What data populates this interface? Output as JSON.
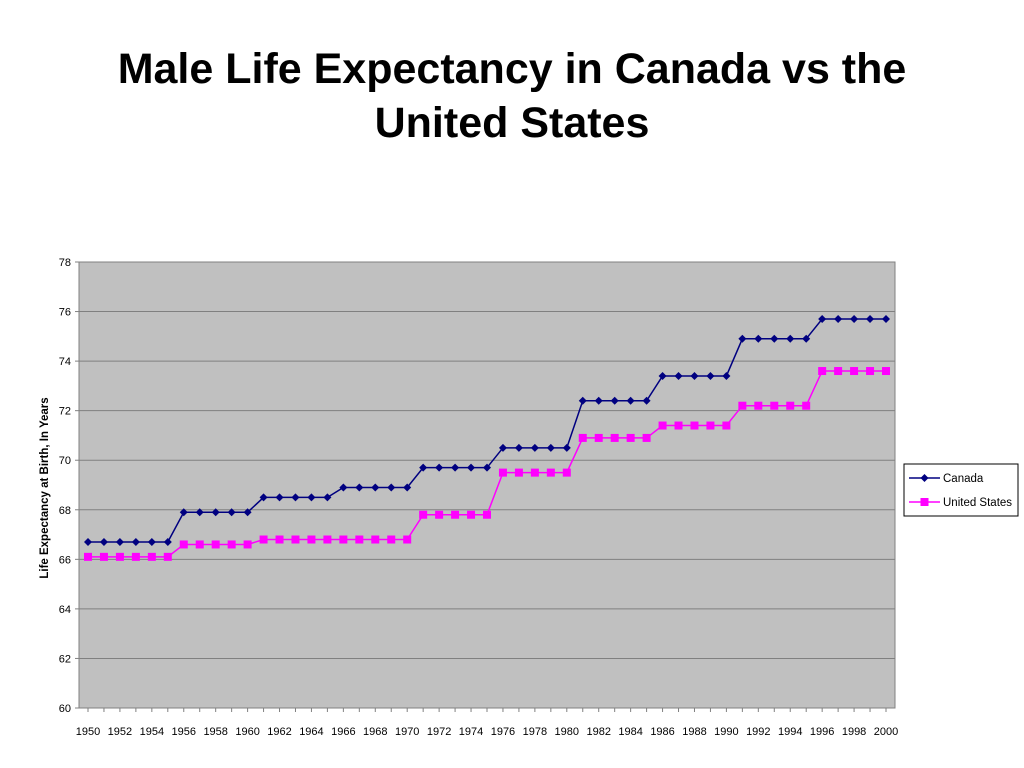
{
  "chart_data": {
    "type": "line",
    "title": [
      "Male Life Expectancy in Canada vs the",
      "United States"
    ],
    "ylabel": "Life Expectancy at Birth, In Years",
    "xlabel": "",
    "ylim": [
      60,
      78
    ],
    "yticks": [
      60,
      62,
      64,
      66,
      68,
      70,
      72,
      74,
      76,
      78
    ],
    "x": [
      1950,
      1951,
      1952,
      1953,
      1954,
      1955,
      1956,
      1957,
      1958,
      1959,
      1960,
      1961,
      1962,
      1963,
      1964,
      1965,
      1966,
      1967,
      1968,
      1969,
      1970,
      1971,
      1972,
      1973,
      1974,
      1975,
      1976,
      1977,
      1978,
      1979,
      1980,
      1981,
      1982,
      1983,
      1984,
      1985,
      1986,
      1987,
      1988,
      1989,
      1990,
      1991,
      1992,
      1993,
      1994,
      1995,
      1996,
      1997,
      1998,
      1999,
      2000
    ],
    "xtick_labels": [
      "1950",
      "1952",
      "1954",
      "1956",
      "1958",
      "1960",
      "1962",
      "1964",
      "1966",
      "1968",
      "1970",
      "1972",
      "1974",
      "1976",
      "1978",
      "1980",
      "1982",
      "1984",
      "1986",
      "1988",
      "1990",
      "1992",
      "1994",
      "1996",
      "1998",
      "2000"
    ],
    "grid": true,
    "legend_position": "right",
    "plot_background": "#c0c0c0",
    "series": [
      {
        "name": "Canada",
        "color": "#000080",
        "marker": "diamond",
        "values": [
          66.7,
          66.7,
          66.7,
          66.7,
          66.7,
          66.7,
          67.9,
          67.9,
          67.9,
          67.9,
          67.9,
          68.5,
          68.5,
          68.5,
          68.5,
          68.5,
          68.9,
          68.9,
          68.9,
          68.9,
          68.9,
          69.7,
          69.7,
          69.7,
          69.7,
          69.7,
          70.5,
          70.5,
          70.5,
          70.5,
          70.5,
          72.4,
          72.4,
          72.4,
          72.4,
          72.4,
          73.4,
          73.4,
          73.4,
          73.4,
          73.4,
          74.9,
          74.9,
          74.9,
          74.9,
          74.9,
          75.7,
          75.7,
          75.7,
          75.7,
          75.7
        ]
      },
      {
        "name": "United States",
        "color": "#ff00ff",
        "marker": "square",
        "values": [
          66.1,
          66.1,
          66.1,
          66.1,
          66.1,
          66.1,
          66.6,
          66.6,
          66.6,
          66.6,
          66.6,
          66.8,
          66.8,
          66.8,
          66.8,
          66.8,
          66.8,
          66.8,
          66.8,
          66.8,
          66.8,
          67.8,
          67.8,
          67.8,
          67.8,
          67.8,
          69.5,
          69.5,
          69.5,
          69.5,
          69.5,
          70.9,
          70.9,
          70.9,
          70.9,
          70.9,
          71.4,
          71.4,
          71.4,
          71.4,
          71.4,
          72.2,
          72.2,
          72.2,
          72.2,
          72.2,
          73.6,
          73.6,
          73.6,
          73.6,
          73.6
        ]
      }
    ]
  }
}
